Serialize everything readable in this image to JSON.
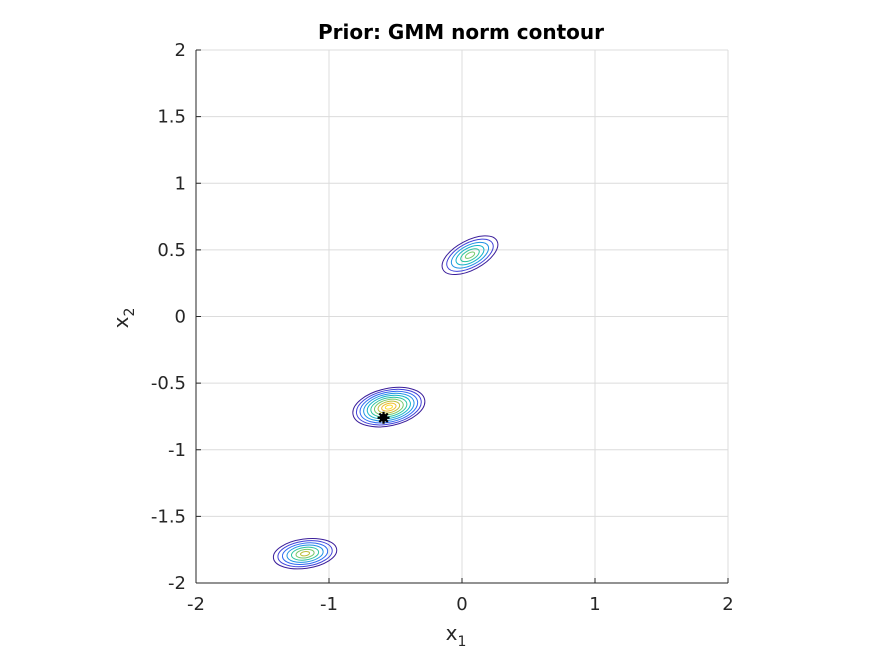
{
  "chart_data": {
    "type": "contour",
    "title": "Prior: GMM norm contour",
    "xlabel": {
      "base": "x",
      "subscript": "1"
    },
    "ylabel": {
      "base": "x",
      "subscript": "2"
    },
    "xlim": [
      -2,
      2
    ],
    "ylim": [
      -2,
      2
    ],
    "xticks": [
      -2,
      -1,
      0,
      1,
      2
    ],
    "yticks": [
      -2,
      -1.5,
      -1,
      -0.5,
      0,
      0.5,
      1,
      1.5,
      2
    ],
    "xtick_labels": [
      "-2",
      "-1",
      "0",
      "1",
      "2"
    ],
    "ytick_labels": [
      "-2",
      "-1.5",
      "-1",
      "-0.5",
      "0",
      "0.5",
      "1",
      "1.5",
      "2"
    ],
    "grid": true,
    "colormap": [
      "#3a1d9a",
      "#3f40d8",
      "#2f6bf2",
      "#1f92e4",
      "#14b3c9",
      "#2cc39f",
      "#74c86a",
      "#bdbd3a",
      "#f0bb2e",
      "#f9d927"
    ],
    "components": [
      {
        "name": "component-1",
        "mean": [
          0.06,
          0.46
        ],
        "axes": [
          0.46,
          0.22
        ],
        "angle_deg": -28,
        "levels": 6
      },
      {
        "name": "component-2",
        "mean": [
          -0.55,
          -0.68
        ],
        "axes": [
          0.55,
          0.28
        ],
        "angle_deg": -12,
        "levels": 10
      },
      {
        "name": "component-3",
        "mean": [
          -1.18,
          -1.78
        ],
        "axes": [
          0.48,
          0.22
        ],
        "angle_deg": -8,
        "levels": 7
      }
    ],
    "marker": {
      "x": -0.59,
      "y": -0.76,
      "color": "#000000",
      "shape": "asterisk"
    }
  }
}
